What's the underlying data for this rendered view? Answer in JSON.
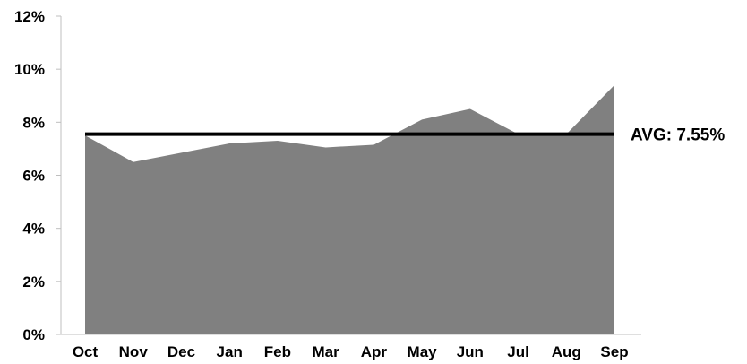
{
  "chart_data": {
    "type": "area",
    "categories": [
      "Oct",
      "Nov",
      "Dec",
      "Jan",
      "Feb",
      "Mar",
      "Apr",
      "May",
      "Jun",
      "Jul",
      "Aug",
      "Sep"
    ],
    "series": [
      {
        "values": [
          7.5,
          6.5,
          6.85,
          7.2,
          7.3,
          7.05,
          7.15,
          8.1,
          8.5,
          7.55,
          7.55,
          9.4
        ]
      }
    ],
    "ylim": [
      0,
      12
    ],
    "yticks": [
      0,
      2,
      4,
      6,
      8,
      10,
      12
    ],
    "ytick_labels": [
      "0%",
      "2%",
      "4%",
      "6%",
      "8%",
      "10%",
      "12%"
    ],
    "grid": false,
    "legend": "none",
    "average": {
      "value": 7.55,
      "label": "AVG: 7.55%"
    },
    "colors": {
      "area": "#808080",
      "line": "#000000",
      "axis": "#bfbfbf"
    }
  }
}
